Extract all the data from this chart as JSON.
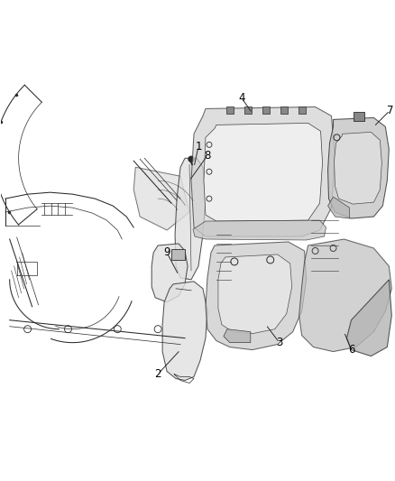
{
  "bg_color": "#ffffff",
  "line_color": "#2a2a2a",
  "label_color": "#000000",
  "fig_width": 4.38,
  "fig_height": 5.33,
  "dpi": 100,
  "label_fontsize": 8.5
}
